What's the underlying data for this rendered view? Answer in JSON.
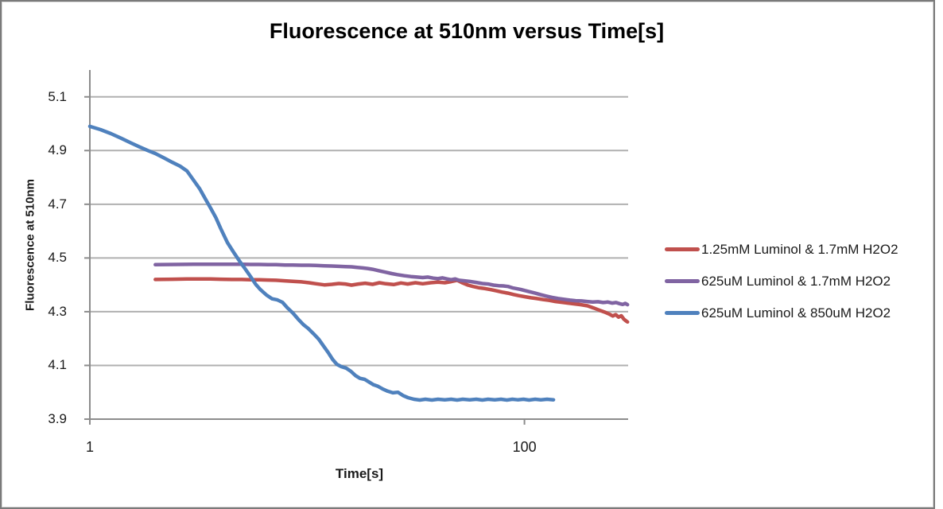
{
  "title": "Fluorescence at 510nm versus Time[s]",
  "colors": {
    "background": "#ffffff",
    "frame_border": "#7a7a7a",
    "gridline": "#b0b0b0",
    "axis": "#8c8c8c",
    "title_text": "#000000",
    "tick_text": "#1a1a1a",
    "series_red": "#C0504D",
    "series_purple": "#8064A2",
    "series_blue": "#4F81BD"
  },
  "chart_data": {
    "type": "line",
    "title": "Fluorescence at 510nm versus Time[s]",
    "xlabel": "Time[s]",
    "ylabel": "Fluorescence at 510nm",
    "x_scale": "log10",
    "xlim": [
      1,
      300
    ],
    "ylim": [
      3.9,
      5.2
    ],
    "grid": "horizontal-only",
    "legend_position": "right-of-plot",
    "xticks": [
      {
        "value": 1,
        "label": "1"
      },
      {
        "value": 100,
        "label": "100"
      }
    ],
    "yticks": [
      {
        "value": 3.9,
        "label": "3.9"
      },
      {
        "value": 4.1,
        "label": "4.1"
      },
      {
        "value": 4.3,
        "label": "4.3"
      },
      {
        "value": 4.5,
        "label": "4.5"
      },
      {
        "value": 4.7,
        "label": "4.7"
      },
      {
        "value": 4.9,
        "label": "4.9"
      },
      {
        "value": 5.1,
        "label": "5.1"
      }
    ],
    "series": [
      {
        "name": "1.25mM Luminol & 1.7mM H2O2",
        "color": "#C0504D",
        "points": [
          [
            2,
            4.42
          ],
          [
            2.4,
            4.421
          ],
          [
            2.8,
            4.422
          ],
          [
            3.2,
            4.422
          ],
          [
            3.6,
            4.422
          ],
          [
            4,
            4.421
          ],
          [
            4.5,
            4.42
          ],
          [
            5,
            4.42
          ],
          [
            5.5,
            4.419
          ],
          [
            6,
            4.419
          ],
          [
            6.6,
            4.418
          ],
          [
            7.2,
            4.417
          ],
          [
            7.9,
            4.415
          ],
          [
            8.6,
            4.413
          ],
          [
            9.4,
            4.411
          ],
          [
            10.2,
            4.408
          ],
          [
            11,
            4.404
          ],
          [
            12,
            4.4
          ],
          [
            13,
            4.402
          ],
          [
            14,
            4.405
          ],
          [
            15,
            4.403
          ],
          [
            16,
            4.399
          ],
          [
            17.2,
            4.403
          ],
          [
            18.5,
            4.406
          ],
          [
            20,
            4.402
          ],
          [
            21.5,
            4.408
          ],
          [
            23,
            4.404
          ],
          [
            25,
            4.401
          ],
          [
            27,
            4.407
          ],
          [
            29,
            4.403
          ],
          [
            31.5,
            4.408
          ],
          [
            34,
            4.404
          ],
          [
            37,
            4.408
          ],
          [
            40,
            4.41
          ],
          [
            43,
            4.408
          ],
          [
            46,
            4.412
          ],
          [
            49,
            4.417
          ],
          [
            52,
            4.407
          ],
          [
            55,
            4.399
          ],
          [
            58,
            4.394
          ],
          [
            62,
            4.389
          ],
          [
            66,
            4.386
          ],
          [
            70,
            4.382
          ],
          [
            74,
            4.378
          ],
          [
            79,
            4.373
          ],
          [
            84,
            4.369
          ],
          [
            89,
            4.364
          ],
          [
            94,
            4.36
          ],
          [
            100,
            4.356
          ],
          [
            107,
            4.352
          ],
          [
            114,
            4.349
          ],
          [
            122,
            4.345
          ],
          [
            130,
            4.342
          ],
          [
            139,
            4.338
          ],
          [
            149,
            4.335
          ],
          [
            159,
            4.332
          ],
          [
            170,
            4.329
          ],
          [
            182,
            4.326
          ],
          [
            195,
            4.322
          ],
          [
            208,
            4.314
          ],
          [
            222,
            4.305
          ],
          [
            235,
            4.298
          ],
          [
            246,
            4.291
          ],
          [
            255,
            4.284
          ],
          [
            263,
            4.289
          ],
          [
            271,
            4.28
          ],
          [
            279,
            4.285
          ],
          [
            287,
            4.272
          ],
          [
            293,
            4.266
          ],
          [
            298,
            4.262
          ]
        ]
      },
      {
        "name": "625uM Luminol & 1.7mM H2O2",
        "color": "#8064A2",
        "points": [
          [
            2,
            4.475
          ],
          [
            2.5,
            4.476
          ],
          [
            3,
            4.477
          ],
          [
            3.5,
            4.477
          ],
          [
            4,
            4.477
          ],
          [
            4.5,
            4.477
          ],
          [
            5,
            4.477
          ],
          [
            5.5,
            4.476
          ],
          [
            6,
            4.476
          ],
          [
            6.6,
            4.475
          ],
          [
            7.2,
            4.475
          ],
          [
            7.9,
            4.474
          ],
          [
            8.6,
            4.474
          ],
          [
            9.4,
            4.473
          ],
          [
            10.2,
            4.473
          ],
          [
            11,
            4.472
          ],
          [
            12,
            4.471
          ],
          [
            13,
            4.47
          ],
          [
            14,
            4.469
          ],
          [
            15,
            4.468
          ],
          [
            16,
            4.467
          ],
          [
            17,
            4.465
          ],
          [
            18,
            4.463
          ],
          [
            19,
            4.461
          ],
          [
            20,
            4.458
          ],
          [
            21.5,
            4.452
          ],
          [
            23,
            4.447
          ],
          [
            24.5,
            4.442
          ],
          [
            26,
            4.438
          ],
          [
            28,
            4.434
          ],
          [
            30,
            4.431
          ],
          [
            32,
            4.429
          ],
          [
            34,
            4.427
          ],
          [
            36,
            4.429
          ],
          [
            38,
            4.425
          ],
          [
            40,
            4.423
          ],
          [
            42,
            4.426
          ],
          [
            44,
            4.422
          ],
          [
            46,
            4.419
          ],
          [
            48,
            4.422
          ],
          [
            50,
            4.417
          ],
          [
            53,
            4.415
          ],
          [
            56,
            4.413
          ],
          [
            60,
            4.409
          ],
          [
            64,
            4.405
          ],
          [
            68,
            4.403
          ],
          [
            72,
            4.399
          ],
          [
            76,
            4.397
          ],
          [
            80,
            4.396
          ],
          [
            84,
            4.394
          ],
          [
            88,
            4.389
          ],
          [
            92,
            4.386
          ],
          [
            96,
            4.383
          ],
          [
            100,
            4.379
          ],
          [
            106,
            4.374
          ],
          [
            112,
            4.369
          ],
          [
            119,
            4.363
          ],
          [
            126,
            4.358
          ],
          [
            134,
            4.353
          ],
          [
            143,
            4.349
          ],
          [
            152,
            4.346
          ],
          [
            162,
            4.343
          ],
          [
            172,
            4.341
          ],
          [
            183,
            4.34
          ],
          [
            194,
            4.338
          ],
          [
            206,
            4.336
          ],
          [
            218,
            4.337
          ],
          [
            230,
            4.334
          ],
          [
            242,
            4.336
          ],
          [
            253,
            4.332
          ],
          [
            264,
            4.334
          ],
          [
            274,
            4.33
          ],
          [
            283,
            4.327
          ],
          [
            291,
            4.331
          ],
          [
            298,
            4.326
          ]
        ]
      },
      {
        "name": "625uM Luminol & 850uM H2O2",
        "color": "#4F81BD",
        "points": [
          [
            1,
            4.99
          ],
          [
            1.12,
            4.978
          ],
          [
            1.25,
            4.963
          ],
          [
            1.4,
            4.945
          ],
          [
            1.55,
            4.928
          ],
          [
            1.7,
            4.913
          ],
          [
            1.85,
            4.9
          ],
          [
            2,
            4.889
          ],
          [
            2.2,
            4.872
          ],
          [
            2.4,
            4.856
          ],
          [
            2.6,
            4.842
          ],
          [
            2.8,
            4.824
          ],
          [
            3,
            4.79
          ],
          [
            3.2,
            4.758
          ],
          [
            3.4,
            4.72
          ],
          [
            3.6,
            4.685
          ],
          [
            3.8,
            4.65
          ],
          [
            4,
            4.61
          ],
          [
            4.3,
            4.557
          ],
          [
            4.6,
            4.52
          ],
          [
            4.9,
            4.487
          ],
          [
            5.2,
            4.458
          ],
          [
            5.5,
            4.43
          ],
          [
            5.8,
            4.402
          ],
          [
            6.1,
            4.382
          ],
          [
            6.5,
            4.362
          ],
          [
            6.9,
            4.348
          ],
          [
            7.3,
            4.344
          ],
          [
            7.7,
            4.335
          ],
          [
            8.1,
            4.315
          ],
          [
            8.6,
            4.295
          ],
          [
            9.1,
            4.272
          ],
          [
            9.6,
            4.252
          ],
          [
            10.1,
            4.238
          ],
          [
            10.7,
            4.218
          ],
          [
            11.3,
            4.198
          ],
          [
            11.9,
            4.172
          ],
          [
            12.5,
            4.148
          ],
          [
            13.1,
            4.122
          ],
          [
            13.7,
            4.104
          ],
          [
            14.3,
            4.096
          ],
          [
            15.1,
            4.09
          ],
          [
            15.9,
            4.078
          ],
          [
            16.7,
            4.062
          ],
          [
            17.5,
            4.052
          ],
          [
            18.4,
            4.048
          ],
          [
            19.3,
            4.038
          ],
          [
            20.2,
            4.028
          ],
          [
            21.2,
            4.022
          ],
          [
            22.3,
            4.012
          ],
          [
            23.5,
            4.004
          ],
          [
            24.8,
            3.998
          ],
          [
            26.2,
            4.0
          ],
          [
            27.6,
            3.988
          ],
          [
            29.1,
            3.98
          ],
          [
            31,
            3.974
          ],
          [
            33,
            3.971
          ],
          [
            35,
            3.974
          ],
          [
            37.5,
            3.971
          ],
          [
            40,
            3.974
          ],
          [
            43,
            3.972
          ],
          [
            46,
            3.974
          ],
          [
            49,
            3.971
          ],
          [
            52,
            3.974
          ],
          [
            56,
            3.972
          ],
          [
            60,
            3.974
          ],
          [
            64,
            3.971
          ],
          [
            68,
            3.974
          ],
          [
            73,
            3.972
          ],
          [
            78,
            3.974
          ],
          [
            83,
            3.971
          ],
          [
            88,
            3.974
          ],
          [
            93,
            3.972
          ],
          [
            99,
            3.974
          ],
          [
            105,
            3.971
          ],
          [
            112,
            3.974
          ],
          [
            119,
            3.972
          ],
          [
            127,
            3.974
          ],
          [
            136,
            3.972
          ]
        ]
      }
    ]
  }
}
